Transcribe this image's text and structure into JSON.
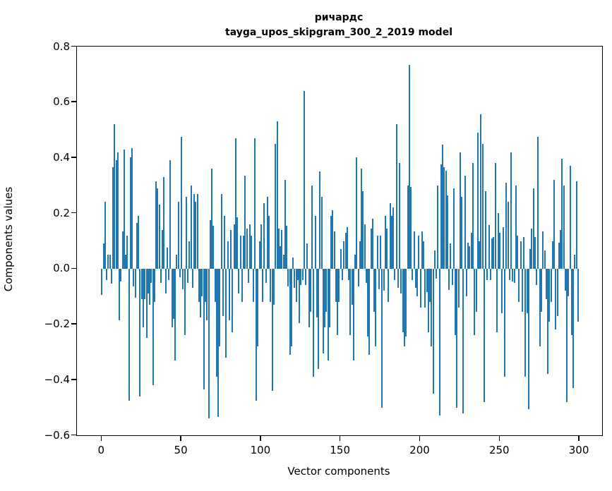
{
  "chart_data": {
    "type": "bar",
    "title_line1": "ричардс",
    "title_line2": "tayga_upos_skipgram_300_2_2019 model",
    "xlabel": "Vector components",
    "ylabel": "Components values",
    "bar_color": "#1f77b4",
    "legend": "none",
    "grid": false,
    "ylim": [
      -0.6,
      0.8
    ],
    "y_ticks": [
      0.8,
      0.6,
      0.4,
      0.2,
      0.0,
      -0.2,
      -0.4,
      -0.6
    ],
    "y_tick_labels": [
      "0.8",
      "0.6",
      "0.4",
      "0.2",
      "0.0",
      "−0.2",
      "−0.4",
      "−0.6"
    ],
    "x_ticks": [
      0,
      50,
      100,
      150,
      200,
      250,
      300
    ],
    "x_tick_labels": [
      "0",
      "50",
      "100",
      "150",
      "200",
      "250",
      "300"
    ],
    "n_components": 300,
    "values": [
      -0.095,
      0.09,
      0.24,
      -0.04,
      0.05,
      0.05,
      -0.055,
      0.365,
      0.52,
      0.39,
      0.42,
      -0.185,
      -0.045,
      0.135,
      0.43,
      0.05,
      0.12,
      -0.475,
      0.4,
      0.435,
      -0.065,
      -0.105,
      0.165,
      0.19,
      -0.46,
      -0.11,
      -0.21,
      -0.11,
      -0.25,
      -0.09,
      -0.13,
      -0.05,
      -0.42,
      -0.12,
      0.315,
      0.29,
      0.23,
      -0.05,
      0.14,
      0.33,
      -0.09,
      0.077,
      -0.04,
      0.39,
      -0.21,
      -0.18,
      -0.33,
      0.05,
      0.24,
      -0.03,
      0.475,
      -0.075,
      -0.24,
      0.26,
      -0.05,
      0.1,
      0.3,
      -0.07,
      0.27,
      0.24,
      0.27,
      -0.12,
      -0.175,
      -0.1,
      -0.435,
      -0.12,
      -0.185,
      -0.54,
      0.175,
      0.36,
      0.155,
      -0.12,
      -0.39,
      -0.535,
      -0.28,
      0.27,
      -0.17,
      0.19,
      -0.32,
      0.1,
      -0.185,
      0.14,
      -0.23,
      0.16,
      0.47,
      0.185,
      -0.09,
      0.12,
      -0.12,
      0.12,
      0.335,
      0.145,
      -0.05,
      0.16,
      0.12,
      -0.12,
      0.47,
      -0.475,
      -0.28,
      0.1,
      0.16,
      -0.12,
      0.235,
      -0.05,
      0.26,
      0.19,
      -0.12,
      -0.44,
      -0.13,
      0.45,
      0.53,
      0.145,
      0.08,
      0.14,
      0.05,
      0.32,
      0.155,
      -0.065,
      -0.31,
      -0.28,
      0.04,
      -0.07,
      -0.12,
      -0.04,
      -0.195,
      -0.06,
      -0.04,
      0.64,
      -0.06,
      0.09,
      -0.21,
      -0.155,
      0.3,
      -0.39,
      0.19,
      -0.175,
      -0.36,
      0.35,
      0.26,
      -0.305,
      -0.21,
      -0.155,
      -0.33,
      -0.21,
      0.19,
      0.21,
      0.135,
      -0.12,
      -0.24,
      -0.12,
      0.07,
      -0.04,
      0.1,
      0.13,
      0.15,
      -0.04,
      -0.24,
      -0.13,
      -0.33,
      0.05,
      0.4,
      -0.065,
      0.1,
      0.36,
      0.28,
      0.16,
      -0.05,
      -0.245,
      -0.31,
      0.145,
      0.18,
      -0.155,
      -0.28,
      0.12,
      -0.075,
      0.12,
      -0.5,
      -0.08,
      0.19,
      0.145,
      -0.12,
      0.235,
      0.19,
      0.22,
      -0.04,
      0.52,
      -0.07,
      0.38,
      -0.09,
      -0.23,
      -0.28,
      -0.245,
      0.3,
      0.735,
      0.295,
      -0.04,
      0.135,
      -0.07,
      -0.1,
      0.12,
      -0.14,
      0.135,
      0.1,
      -0.14,
      -0.085,
      -0.23,
      -0.12,
      -0.28,
      -0.45,
      0.065,
      -0.035,
      0.3,
      -0.53,
      0.376,
      0.447,
      0.366,
      0.353,
      0.264,
      -0.076,
      0.09,
      -0.06,
      0.29,
      -0.24,
      -0.5,
      -0.14,
      0.42,
      0.26,
      -0.52,
      0.336,
      -0.1,
      0.094,
      0.08,
      0.13,
      0.38,
      -0.24,
      -0.156,
      0.49,
      0.098,
      0.555,
      0.45,
      -0.48,
      0.28,
      -0.04,
      0.158,
      -0.042,
      0.11,
      0.115,
      0.38,
      -0.23,
      0.2,
      0.13,
      -0.16,
      0.15,
      -0.39,
      0.31,
      0.24,
      -0.04,
      0.42,
      -0.045,
      -0.05,
      0.3,
      0.12,
      -0.12,
      0.1,
      -0.155,
      0.115,
      -0.39,
      -0.16,
      -0.505,
      0.07,
      0.145,
      0.29,
      0.115,
      -0.06,
      0.475,
      -0.28,
      -0.155,
      0.135,
      0.065,
      -0.11,
      -0.38,
      -0.19,
      -0.12,
      0.1,
      0.32,
      -0.22,
      -0.17,
      0.095,
      0.14,
      0.395,
      0.3,
      -0.08,
      -0.48,
      -0.1,
      0.37,
      -0.24,
      -0.43,
      0.05,
      0.315,
      -0.19
    ]
  }
}
